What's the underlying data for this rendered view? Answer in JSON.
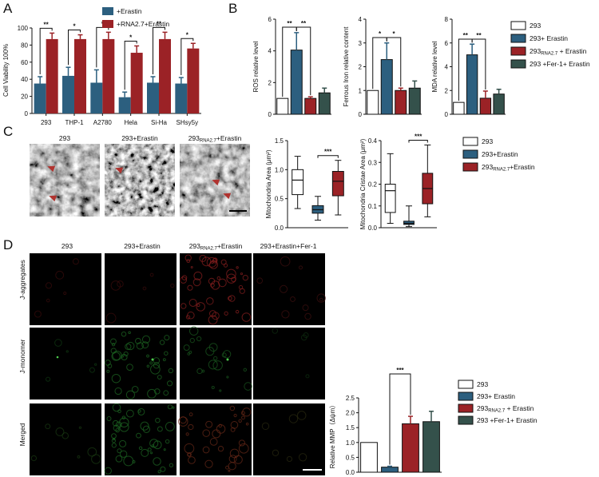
{
  "colors": {
    "blue": "#2c5f7f",
    "red": "#9b2226",
    "darkgreen": "#34514b",
    "white": "#ffffff",
    "black": "#111111",
    "arrow": "#b0332f"
  },
  "panels": {
    "a": "A",
    "b": "B",
    "c": "C",
    "d": "D"
  },
  "panel_c_images": [
    {
      "label": "293"
    },
    {
      "label": "293+Erastin"
    },
    {
      "label": "293",
      "sub": "RNA2.7",
      "rest": "+Erastin"
    }
  ],
  "panel_d_columns": [
    {
      "label": "293"
    },
    {
      "label": "293+Erastin"
    },
    {
      "label": "293",
      "sub": "RNA2.7",
      "rest": "+Erastin"
    },
    {
      "label": "293+Erastin+Fer-1"
    }
  ],
  "panel_d_rows": [
    "J-aggregates",
    "J-monomer",
    "Merged"
  ],
  "legend_b": [
    {
      "label": "293",
      "color": "#ffffff"
    },
    {
      "label": "293+ Erastin",
      "color": "#2c5f7f"
    },
    {
      "label": "293",
      "sub": "RNA2.7",
      "rest": " + Erastin",
      "color": "#9b2226"
    },
    {
      "label": "293 +Fer-1+ Erastin",
      "color": "#34514b"
    }
  ],
  "legend_c": [
    {
      "label": "293",
      "color": "#ffffff"
    },
    {
      "label": "293+Erastin",
      "color": "#2c5f7f"
    },
    {
      "label": "293",
      "sub": "RNA2.7",
      "rest": "+Erastin",
      "color": "#9b2226"
    }
  ],
  "legend_d": [
    {
      "label": "293",
      "color": "#ffffff"
    },
    {
      "label": "293+ Erastin",
      "color": "#2c5f7f"
    },
    {
      "label": "293",
      "sub": "RNA2.7",
      "rest": " + Erastin",
      "color": "#9b2226"
    },
    {
      "label": "293 +Fer-1+ Erastin",
      "color": "#34514b"
    }
  ],
  "chart_data": [
    {
      "id": "A",
      "type": "bar",
      "ylabel": "Cell Viability 100%",
      "ylim": [
        0,
        100
      ],
      "yticks": [
        0,
        20,
        40,
        60,
        80,
        100
      ],
      "categories": [
        "293",
        "THP-1",
        "A2780",
        "Hela",
        "Si-Ha",
        "SHsy5y"
      ],
      "legend": [
        "+Erastin",
        "+RNA2.7+Erastin"
      ],
      "series": [
        {
          "name": "+Erastin",
          "color": "#2c5f7f",
          "values": [
            35,
            44,
            36,
            19,
            36,
            35
          ],
          "errors": [
            8,
            10,
            15,
            6,
            7,
            7
          ]
        },
        {
          "name": "+RNA2.7+Erastin",
          "color": "#9b2226",
          "values": [
            87,
            87,
            87,
            71,
            87,
            76
          ],
          "errors": [
            7,
            5,
            8,
            8,
            8,
            6
          ]
        }
      ],
      "significance": [
        "**",
        "*",
        "*",
        "*",
        "**",
        "*"
      ]
    },
    {
      "id": "B1",
      "type": "bar",
      "ylabel": "ROS relative level",
      "ylim": [
        0,
        6
      ],
      "yticks": [
        0,
        2,
        4,
        6
      ],
      "values": [
        1.0,
        4.05,
        1.0,
        1.35
      ],
      "errors": [
        0,
        1.1,
        0.1,
        0.3
      ],
      "colors": [
        "#ffffff",
        "#2c5f7f",
        "#9b2226",
        "#34514b"
      ],
      "significance": [
        {
          "from": 0,
          "to": 1,
          "label": "**"
        },
        {
          "from": 1,
          "to": 2,
          "label": "**"
        }
      ]
    },
    {
      "id": "B2",
      "type": "bar",
      "ylabel": "Ferrous Iron relative content",
      "ylim": [
        0,
        4
      ],
      "yticks": [
        0,
        1,
        2,
        3,
        4
      ],
      "values": [
        1.0,
        2.3,
        1.0,
        1.1
      ],
      "errors": [
        0,
        0.7,
        0.1,
        0.3
      ],
      "colors": [
        "#ffffff",
        "#2c5f7f",
        "#9b2226",
        "#34514b"
      ],
      "significance": [
        {
          "from": 0,
          "to": 1,
          "label": "*"
        },
        {
          "from": 1,
          "to": 2,
          "label": "*"
        }
      ]
    },
    {
      "id": "B3",
      "type": "bar",
      "ylabel": "MDA relative level",
      "ylim": [
        0,
        8
      ],
      "yticks": [
        0,
        2,
        4,
        6,
        8
      ],
      "values": [
        1.0,
        5.0,
        1.35,
        1.7
      ],
      "errors": [
        0,
        0.9,
        0.6,
        0.4
      ],
      "colors": [
        "#ffffff",
        "#2c5f7f",
        "#9b2226",
        "#34514b"
      ],
      "significance": [
        {
          "from": 0,
          "to": 1,
          "label": "**"
        },
        {
          "from": 1,
          "to": 2,
          "label": "**"
        }
      ]
    },
    {
      "id": "C1",
      "type": "box",
      "ylabel": "Mitochondria Area (μm²)",
      "ylim": [
        0,
        1.5
      ],
      "yticks": [
        "0.0",
        "0.5",
        "1.0",
        "1.5"
      ],
      "boxes": [
        {
          "min": 0.33,
          "q1": 0.57,
          "median": 0.82,
          "q3": 1.0,
          "max": 1.23,
          "color": "#ffffff"
        },
        {
          "min": 0.13,
          "q1": 0.25,
          "median": 0.31,
          "q3": 0.38,
          "max": 0.54,
          "color": "#2c5f7f"
        },
        {
          "min": 0.22,
          "q1": 0.55,
          "median": 0.8,
          "q3": 0.97,
          "max": 1.16,
          "color": "#9b2226"
        }
      ],
      "significance": {
        "from": 1,
        "to": 2,
        "label": "***"
      }
    },
    {
      "id": "C2",
      "type": "box",
      "ylabel": "Mitochondria Cristae Area (μm²)",
      "ylim": [
        0,
        0.4
      ],
      "yticks": [
        "0.0",
        "0.1",
        "0.2",
        "0.3",
        "0.4"
      ],
      "boxes": [
        {
          "min": 0.02,
          "q1": 0.07,
          "median": 0.17,
          "q3": 0.2,
          "max": 0.34,
          "color": "#ffffff"
        },
        {
          "min": 0.005,
          "q1": 0.015,
          "median": 0.02,
          "q3": 0.03,
          "max": 0.1,
          "color": "#2c5f7f"
        },
        {
          "min": 0.05,
          "q1": 0.11,
          "median": 0.18,
          "q3": 0.25,
          "max": 0.38,
          "color": "#9b2226"
        }
      ],
      "significance": {
        "from": 1,
        "to": 2,
        "label": "***"
      }
    },
    {
      "id": "D",
      "type": "bar",
      "ylabel": "Relative MMP（Δψm）",
      "ylim": [
        0,
        2.5
      ],
      "yticks": [
        "0.0",
        "0.5",
        "1.0",
        "1.5",
        "2.0",
        "2.5"
      ],
      "values": [
        1.0,
        0.17,
        1.63,
        1.7
      ],
      "errors": [
        0,
        0.03,
        0.25,
        0.35
      ],
      "colors": [
        "#ffffff",
        "#2c5f7f",
        "#9b2226",
        "#34514b"
      ],
      "significance": [
        {
          "from": 1,
          "to": 2,
          "label": "***"
        }
      ]
    }
  ]
}
